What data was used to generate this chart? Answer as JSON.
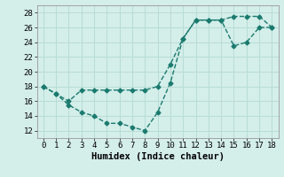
{
  "title": "",
  "xlabel": "Humidex (Indice chaleur)",
  "xlim": [
    -0.5,
    18.5
  ],
  "ylim": [
    11,
    29
  ],
  "yticks": [
    12,
    14,
    16,
    18,
    20,
    22,
    24,
    26,
    28
  ],
  "xticks": [
    0,
    1,
    2,
    3,
    4,
    5,
    6,
    7,
    8,
    9,
    10,
    11,
    12,
    13,
    14,
    15,
    16,
    17,
    18
  ],
  "line1_x": [
    0,
    1,
    2,
    3,
    4,
    5,
    6,
    7,
    8,
    9,
    10,
    11,
    12,
    13,
    14,
    15,
    16,
    17,
    18
  ],
  "line1_y": [
    18,
    17,
    15.5,
    14.5,
    14,
    13,
    13,
    12.5,
    12,
    14.5,
    18.5,
    24.5,
    27,
    27,
    27,
    27.5,
    27.5,
    27.5,
    26
  ],
  "line2_x": [
    0,
    1,
    2,
    3,
    4,
    5,
    6,
    7,
    8,
    9,
    10,
    11,
    12,
    13,
    14,
    15,
    16,
    17,
    18
  ],
  "line2_y": [
    18,
    17,
    16,
    17.5,
    17.5,
    17.5,
    17.5,
    17.5,
    17.5,
    18,
    21,
    24.5,
    27,
    27,
    27,
    23.5,
    24,
    26,
    26
  ],
  "line_color": "#1a7a6e",
  "bg_color": "#d4eeea",
  "grid_color": "#b8dcd6",
  "tick_label_fontsize": 6.5,
  "xlabel_fontsize": 7.5,
  "marker": "D",
  "marker_size": 2.5,
  "linewidth": 1.0
}
